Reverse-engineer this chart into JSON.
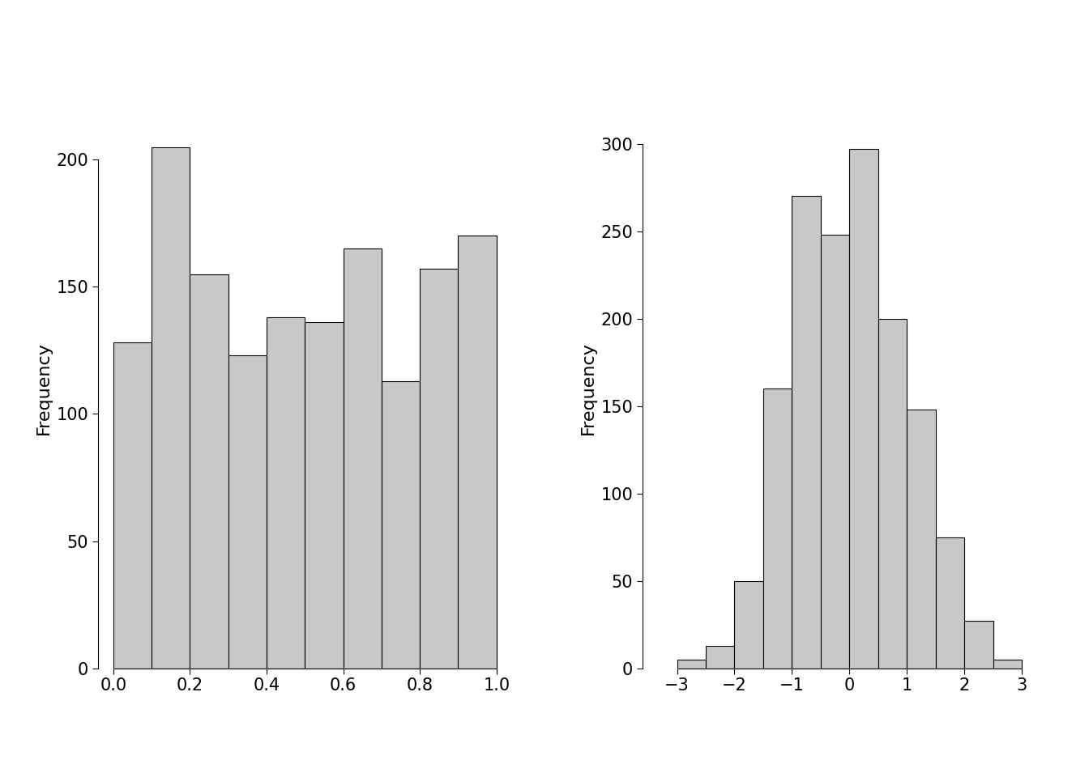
{
  "left_hist": {
    "bin_edges": [
      0.0,
      0.1,
      0.2,
      0.3,
      0.4,
      0.5,
      0.6,
      0.7,
      0.8,
      0.9,
      1.0
    ],
    "frequencies": [
      128,
      205,
      155,
      123,
      138,
      136,
      165,
      113,
      157,
      170
    ],
    "ylabel": "Frequency",
    "xlim": [
      -0.04,
      1.04
    ],
    "ylim": [
      0,
      220
    ],
    "xticks": [
      0.0,
      0.2,
      0.4,
      0.6,
      0.8,
      1.0
    ],
    "yticks": [
      0,
      50,
      100,
      150,
      200
    ]
  },
  "right_hist": {
    "bin_edges": [
      -3.0,
      -2.5,
      -2.0,
      -1.5,
      -1.0,
      -0.5,
      0.0,
      0.5,
      1.0,
      1.5,
      2.0,
      2.5,
      3.0
    ],
    "frequencies": [
      5,
      13,
      50,
      160,
      270,
      248,
      297,
      200,
      148,
      75,
      27,
      5
    ],
    "ylabel": "Frequency",
    "xlim": [
      -3.6,
      3.6
    ],
    "ylim": [
      0,
      320
    ],
    "xticks": [
      -3,
      -2,
      -1,
      0,
      1,
      2,
      3
    ],
    "yticks": [
      0,
      50,
      100,
      150,
      200,
      250,
      300
    ]
  },
  "bar_color": "#c8c8c8",
  "bar_edgecolor": "#000000",
  "bar_linewidth": 0.8,
  "background_color": "#ffffff",
  "figure_facecolor": "#ffffff",
  "tick_labelsize": 15,
  "ylabel_fontsize": 16
}
